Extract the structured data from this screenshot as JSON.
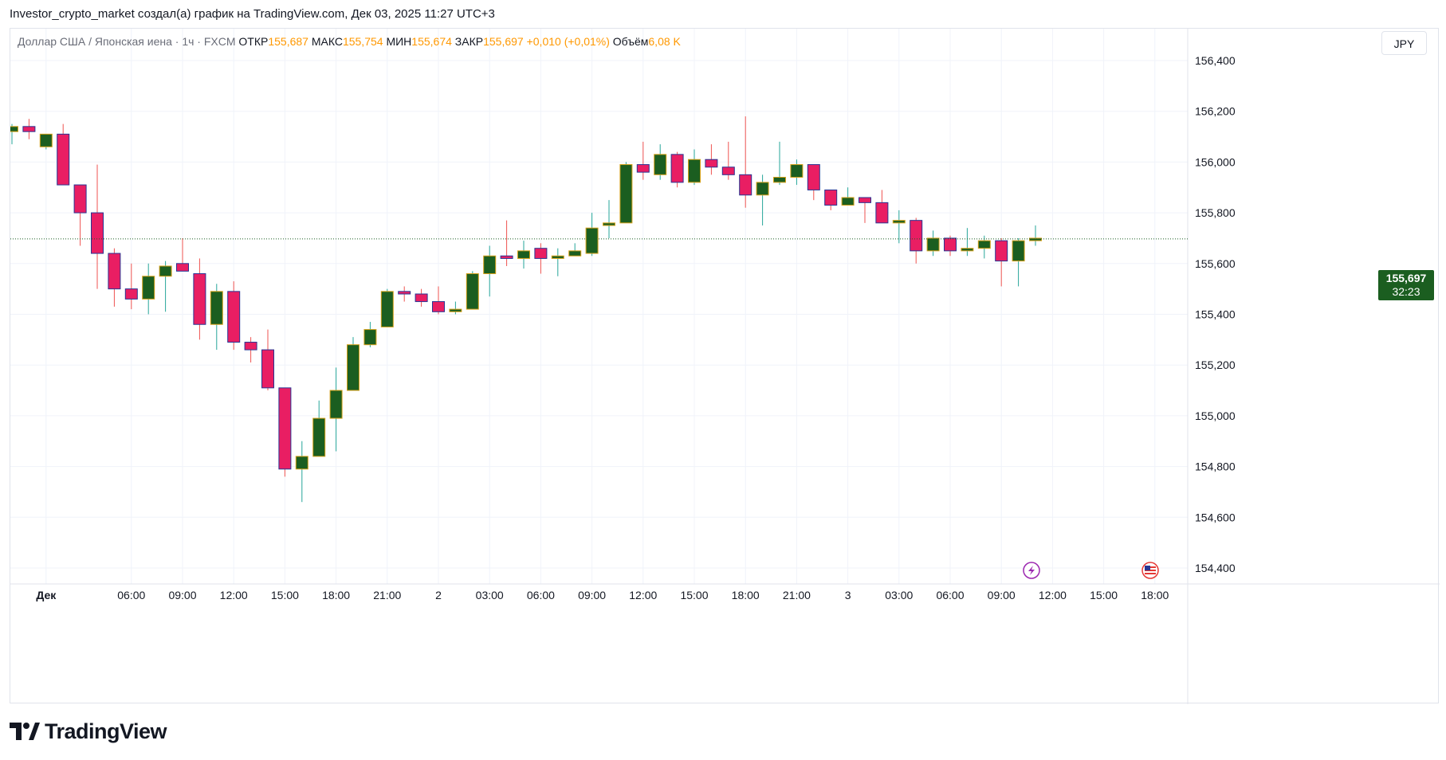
{
  "header": {
    "title": "Investor_crypto_market создал(а) график на TradingView.com, Дек 03, 2025 11:27 UTC+3"
  },
  "legend": {
    "symbol": "Доллар США / Японская иена · 1ч · FXCM",
    "open_label": "ОТКР",
    "open_value": "155,687",
    "high_label": "МАКС",
    "high_value": "155,754",
    "low_label": "МИН",
    "low_value": "155,674",
    "close_label": "ЗАКР",
    "close_value": "155,697",
    "change": "+0,010 (+0,01%)",
    "volume_label": "Объём",
    "volume_value": "6,08 K"
  },
  "currency": "JPY",
  "last_price": {
    "price": "155,697",
    "countdown": "32:23",
    "value": 155.697
  },
  "brand": {
    "name": "TradingView"
  },
  "colors": {
    "up": "#1b5e20",
    "down": "#e91e63",
    "up_border": "#d4a017",
    "down_border": "#283593",
    "grid": "#f0f3fa",
    "text": "#131722"
  },
  "icons": {
    "event_1": "lightning-icon",
    "event_2": "us-flag-icon"
  },
  "chart_data": {
    "type": "candlestick",
    "title": "Доллар США / Японская иена · 1ч · FXCM",
    "ylim": [
      154.35,
      156.6
    ],
    "yticks": [
      {
        "value": 156.4,
        "label": "156,400"
      },
      {
        "value": 156.2,
        "label": "156,200"
      },
      {
        "value": 156.0,
        "label": "156,000"
      },
      {
        "value": 155.8,
        "label": "155,800"
      },
      {
        "value": 155.6,
        "label": "155,600"
      },
      {
        "value": 155.4,
        "label": "155,400"
      },
      {
        "value": 155.2,
        "label": "155,200"
      },
      {
        "value": 155.0,
        "label": "155,000"
      },
      {
        "value": 154.8,
        "label": "154,800"
      },
      {
        "value": 154.6,
        "label": "154,600"
      },
      {
        "value": 154.4,
        "label": "154,400"
      }
    ],
    "xticks": [
      {
        "index": 2,
        "label": "Дек",
        "bold": true
      },
      {
        "index": 7,
        "label": "06:00"
      },
      {
        "index": 10,
        "label": "09:00"
      },
      {
        "index": 13,
        "label": "12:00"
      },
      {
        "index": 16,
        "label": "15:00"
      },
      {
        "index": 19,
        "label": "18:00"
      },
      {
        "index": 22,
        "label": "21:00"
      },
      {
        "index": 25,
        "label": "2"
      },
      {
        "index": 28,
        "label": "03:00"
      },
      {
        "index": 31,
        "label": "06:00"
      },
      {
        "index": 34,
        "label": "09:00"
      },
      {
        "index": 37,
        "label": "12:00"
      },
      {
        "index": 40,
        "label": "15:00"
      },
      {
        "index": 43,
        "label": "18:00"
      },
      {
        "index": 46,
        "label": "21:00"
      },
      {
        "index": 49,
        "label": "3"
      },
      {
        "index": 52,
        "label": "03:00"
      },
      {
        "index": 55,
        "label": "06:00"
      },
      {
        "index": 58,
        "label": "09:00"
      },
      {
        "index": 61,
        "label": "12:00"
      },
      {
        "index": 64,
        "label": "15:00"
      },
      {
        "index": 67,
        "label": "18:00"
      }
    ],
    "candles": [
      {
        "o": 156.12,
        "h": 156.15,
        "l": 156.07,
        "c": 156.14
      },
      {
        "o": 156.14,
        "h": 156.17,
        "l": 156.09,
        "c": 156.12
      },
      {
        "o": 156.06,
        "h": 156.11,
        "l": 156.05,
        "c": 156.11
      },
      {
        "o": 156.11,
        "h": 156.15,
        "l": 155.91,
        "c": 155.91
      },
      {
        "o": 155.91,
        "h": 155.91,
        "l": 155.67,
        "c": 155.8
      },
      {
        "o": 155.8,
        "h": 155.99,
        "l": 155.5,
        "c": 155.64
      },
      {
        "o": 155.64,
        "h": 155.66,
        "l": 155.43,
        "c": 155.5
      },
      {
        "o": 155.5,
        "h": 155.6,
        "l": 155.42,
        "c": 155.46
      },
      {
        "o": 155.46,
        "h": 155.6,
        "l": 155.4,
        "c": 155.55
      },
      {
        "o": 155.55,
        "h": 155.61,
        "l": 155.41,
        "c": 155.59
      },
      {
        "o": 155.6,
        "h": 155.7,
        "l": 155.57,
        "c": 155.57
      },
      {
        "o": 155.56,
        "h": 155.62,
        "l": 155.3,
        "c": 155.36
      },
      {
        "o": 155.36,
        "h": 155.52,
        "l": 155.26,
        "c": 155.49
      },
      {
        "o": 155.49,
        "h": 155.53,
        "l": 155.26,
        "c": 155.29
      },
      {
        "o": 155.29,
        "h": 155.31,
        "l": 155.21,
        "c": 155.26
      },
      {
        "o": 155.26,
        "h": 155.34,
        "l": 155.1,
        "c": 155.11
      },
      {
        "o": 155.11,
        "h": 155.11,
        "l": 154.76,
        "c": 154.79
      },
      {
        "o": 154.79,
        "h": 154.9,
        "l": 154.66,
        "c": 154.84
      },
      {
        "o": 154.84,
        "h": 155.06,
        "l": 154.84,
        "c": 154.99
      },
      {
        "o": 154.99,
        "h": 155.19,
        "l": 154.86,
        "c": 155.1
      },
      {
        "o": 155.1,
        "h": 155.31,
        "l": 155.1,
        "c": 155.28
      },
      {
        "o": 155.28,
        "h": 155.37,
        "l": 155.27,
        "c": 155.34
      },
      {
        "o": 155.35,
        "h": 155.5,
        "l": 155.35,
        "c": 155.49
      },
      {
        "o": 155.49,
        "h": 155.51,
        "l": 155.45,
        "c": 155.48
      },
      {
        "o": 155.48,
        "h": 155.5,
        "l": 155.43,
        "c": 155.45
      },
      {
        "o": 155.45,
        "h": 155.51,
        "l": 155.4,
        "c": 155.41
      },
      {
        "o": 155.41,
        "h": 155.45,
        "l": 155.4,
        "c": 155.42
      },
      {
        "o": 155.42,
        "h": 155.57,
        "l": 155.42,
        "c": 155.56
      },
      {
        "o": 155.56,
        "h": 155.67,
        "l": 155.47,
        "c": 155.63
      },
      {
        "o": 155.63,
        "h": 155.77,
        "l": 155.59,
        "c": 155.62
      },
      {
        "o": 155.62,
        "h": 155.69,
        "l": 155.58,
        "c": 155.65
      },
      {
        "o": 155.66,
        "h": 155.68,
        "l": 155.56,
        "c": 155.62
      },
      {
        "o": 155.62,
        "h": 155.66,
        "l": 155.55,
        "c": 155.63
      },
      {
        "o": 155.63,
        "h": 155.68,
        "l": 155.63,
        "c": 155.65
      },
      {
        "o": 155.64,
        "h": 155.8,
        "l": 155.63,
        "c": 155.74
      },
      {
        "o": 155.75,
        "h": 155.85,
        "l": 155.7,
        "c": 155.76
      },
      {
        "o": 155.76,
        "h": 156.0,
        "l": 155.76,
        "c": 155.99
      },
      {
        "o": 155.99,
        "h": 156.08,
        "l": 155.93,
        "c": 155.96
      },
      {
        "o": 155.95,
        "h": 156.07,
        "l": 155.93,
        "c": 156.03
      },
      {
        "o": 156.03,
        "h": 156.04,
        "l": 155.9,
        "c": 155.92
      },
      {
        "o": 155.92,
        "h": 156.05,
        "l": 155.91,
        "c": 156.01
      },
      {
        "o": 156.01,
        "h": 156.07,
        "l": 155.95,
        "c": 155.98
      },
      {
        "o": 155.98,
        "h": 156.08,
        "l": 155.93,
        "c": 155.95
      },
      {
        "o": 155.95,
        "h": 156.18,
        "l": 155.82,
        "c": 155.87
      },
      {
        "o": 155.87,
        "h": 155.95,
        "l": 155.75,
        "c": 155.92
      },
      {
        "o": 155.92,
        "h": 156.08,
        "l": 155.91,
        "c": 155.94
      },
      {
        "o": 155.94,
        "h": 156.01,
        "l": 155.91,
        "c": 155.99
      },
      {
        "o": 155.99,
        "h": 155.99,
        "l": 155.85,
        "c": 155.89
      },
      {
        "o": 155.89,
        "h": 155.89,
        "l": 155.81,
        "c": 155.83
      },
      {
        "o": 155.83,
        "h": 155.9,
        "l": 155.83,
        "c": 155.86
      },
      {
        "o": 155.86,
        "h": 155.86,
        "l": 155.76,
        "c": 155.84
      },
      {
        "o": 155.84,
        "h": 155.89,
        "l": 155.76,
        "c": 155.76
      },
      {
        "o": 155.76,
        "h": 155.81,
        "l": 155.68,
        "c": 155.77
      },
      {
        "o": 155.77,
        "h": 155.78,
        "l": 155.6,
        "c": 155.65
      },
      {
        "o": 155.65,
        "h": 155.73,
        "l": 155.63,
        "c": 155.7
      },
      {
        "o": 155.7,
        "h": 155.71,
        "l": 155.63,
        "c": 155.65
      },
      {
        "o": 155.65,
        "h": 155.74,
        "l": 155.63,
        "c": 155.66
      },
      {
        "o": 155.66,
        "h": 155.71,
        "l": 155.62,
        "c": 155.69
      },
      {
        "o": 155.69,
        "h": 155.7,
        "l": 155.51,
        "c": 155.61
      },
      {
        "o": 155.61,
        "h": 155.7,
        "l": 155.51,
        "c": 155.69
      },
      {
        "o": 155.69,
        "h": 155.75,
        "l": 155.67,
        "c": 155.7
      }
    ]
  }
}
